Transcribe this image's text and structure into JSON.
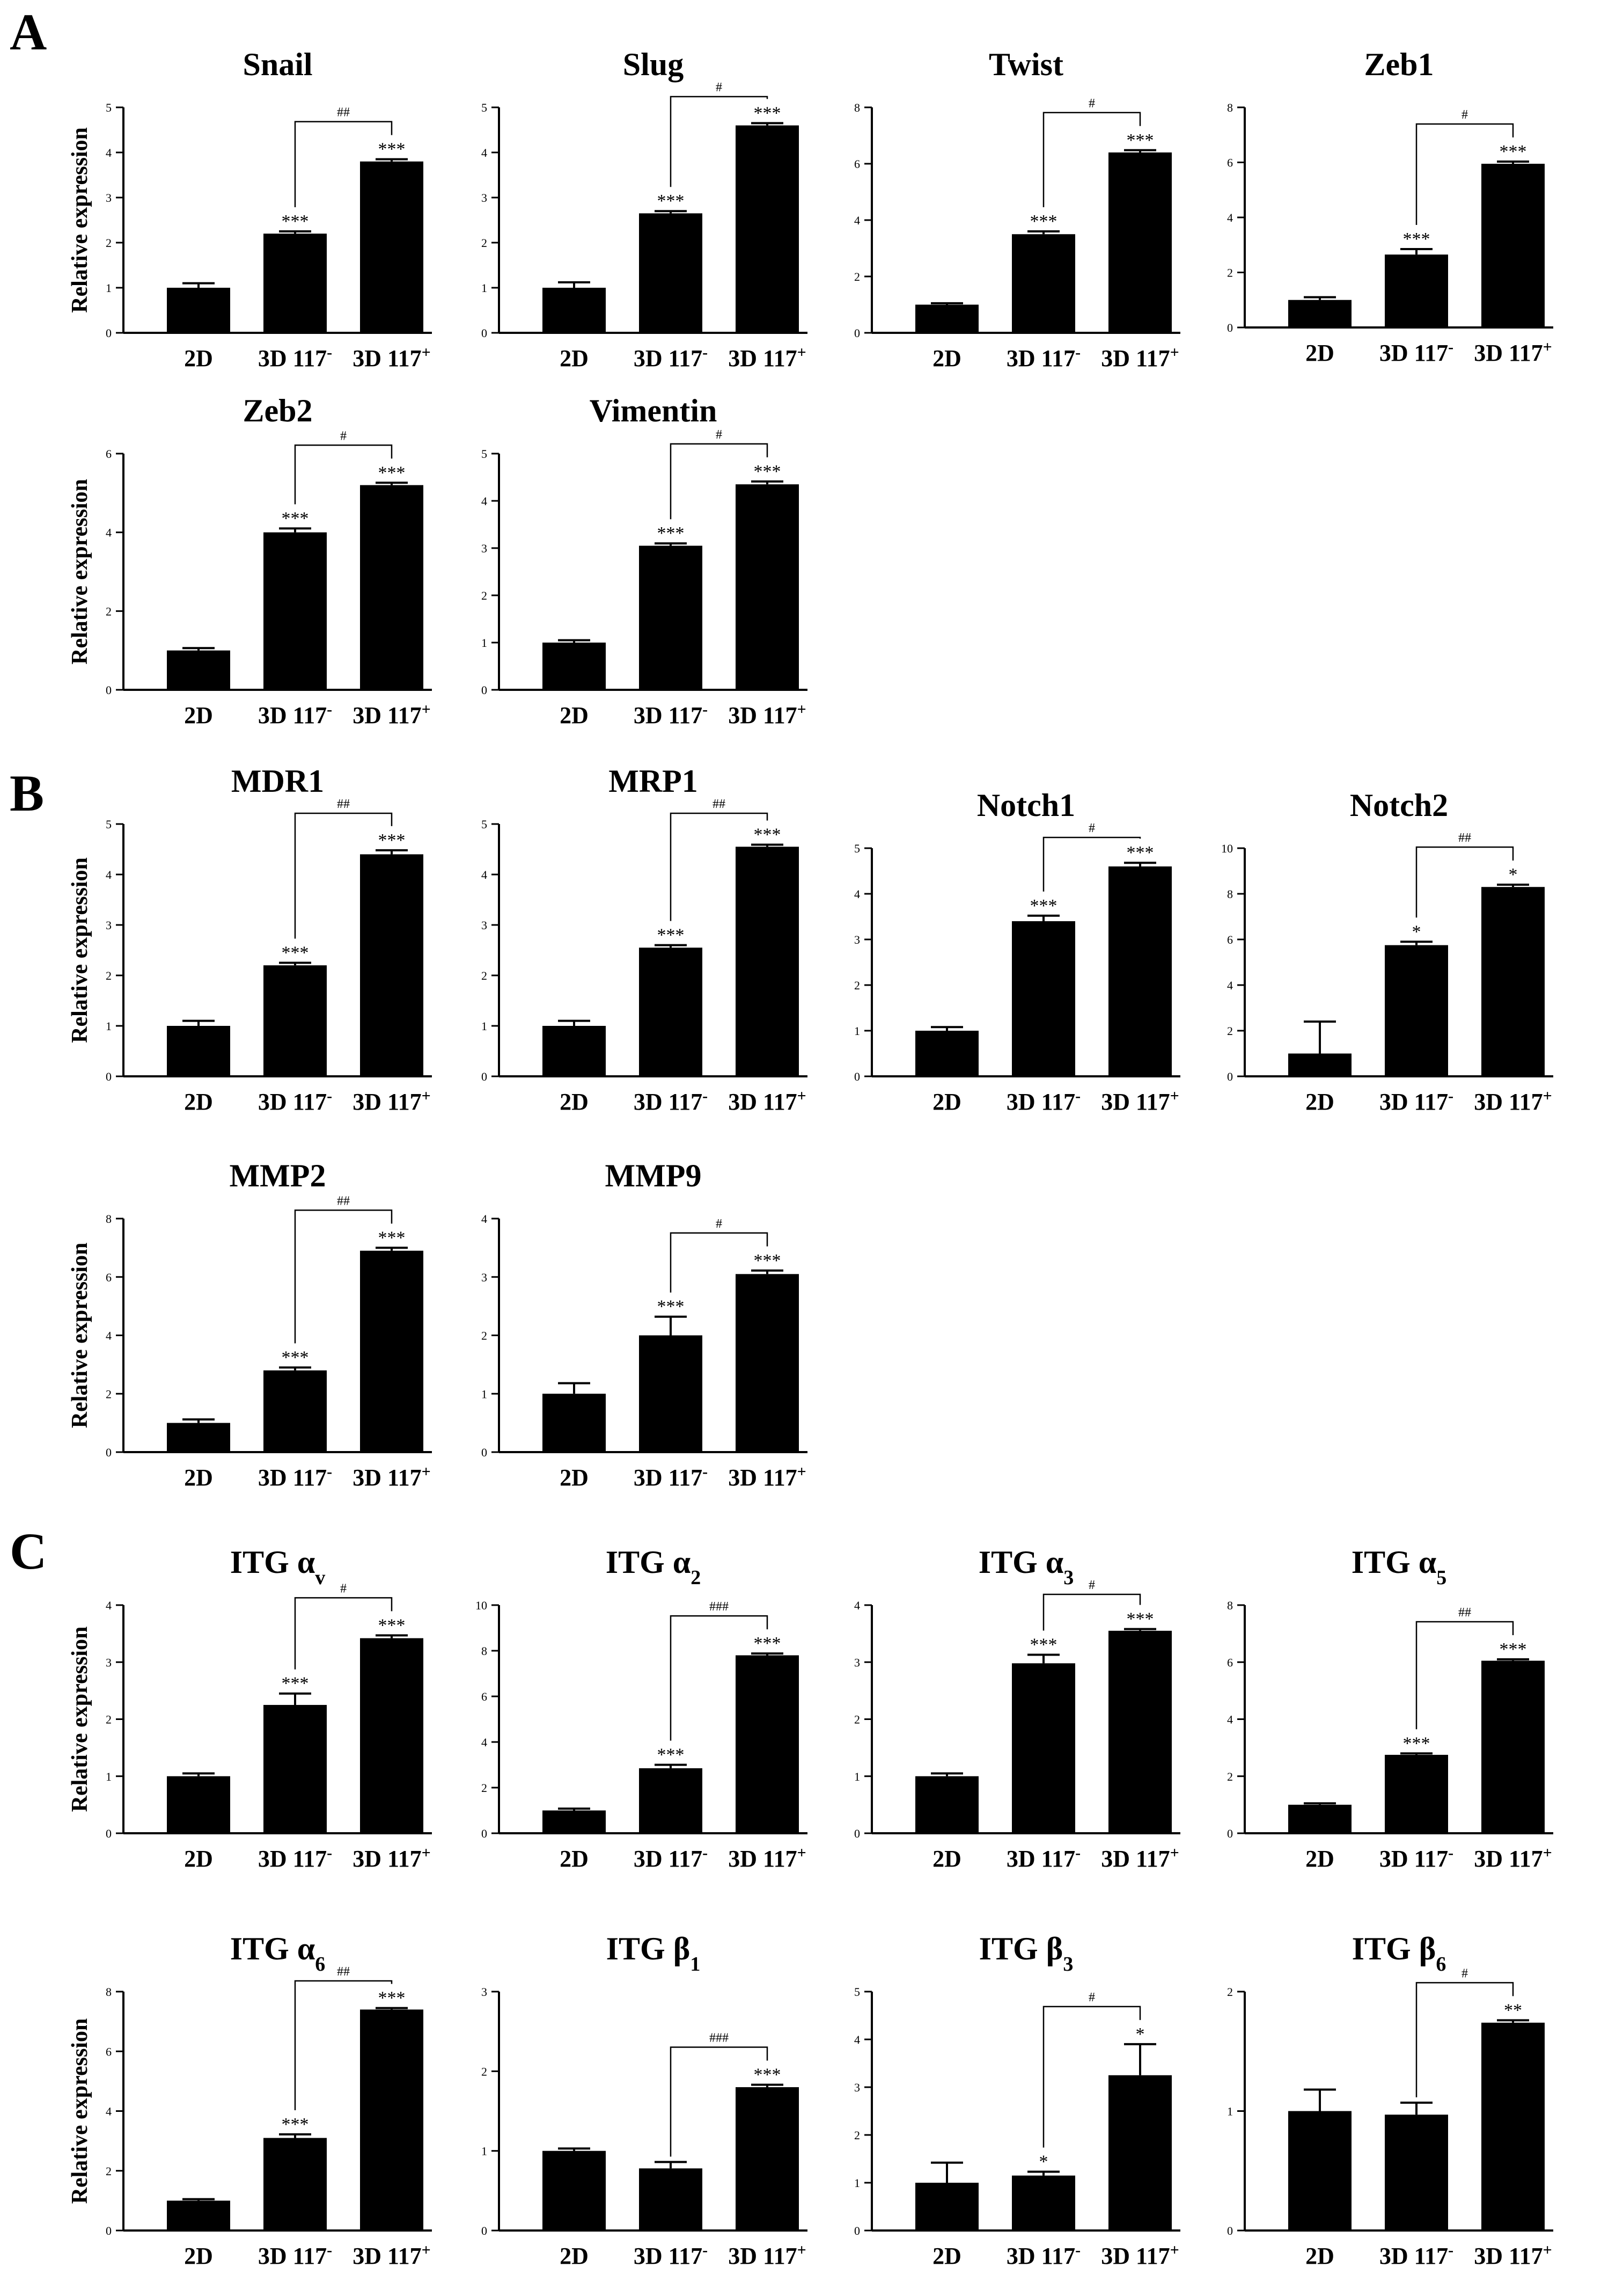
{
  "panels": [
    "A",
    "B",
    "C"
  ],
  "colors": {
    "bar": "#000000",
    "axis": "#000000",
    "background": "#ffffff"
  },
  "chart_data": [
    {
      "type": "bar",
      "panel": "A",
      "title": "Snail",
      "title_sub": "",
      "ylabel": "Relative expression",
      "categories": [
        "2D",
        "3D 117-",
        "3D 117+"
      ],
      "values": [
        1.0,
        2.2,
        3.8
      ],
      "errors": [
        0.1,
        0.05,
        0.05
      ],
      "ylim": [
        0,
        5
      ],
      "yticks": [
        0,
        1,
        2,
        3,
        4,
        5
      ],
      "sig": [
        "",
        "***",
        "***"
      ],
      "bracket": "##"
    },
    {
      "type": "bar",
      "panel": "A",
      "title": "Slug",
      "title_sub": "",
      "ylabel": "",
      "categories": [
        "2D",
        "3D 117-",
        "3D 117+"
      ],
      "values": [
        1.0,
        2.65,
        4.6
      ],
      "errors": [
        0.12,
        0.05,
        0.05
      ],
      "ylim": [
        0,
        5
      ],
      "yticks": [
        0,
        1,
        2,
        3,
        4,
        5
      ],
      "sig": [
        "",
        "***",
        "***"
      ],
      "bracket": "#"
    },
    {
      "type": "bar",
      "panel": "A",
      "title": "Twist",
      "title_sub": "",
      "ylabel": "",
      "categories": [
        "2D",
        "3D 117-",
        "3D 117+"
      ],
      "values": [
        1.0,
        3.5,
        6.4
      ],
      "errors": [
        0.05,
        0.1,
        0.08
      ],
      "ylim": [
        0,
        8
      ],
      "yticks": [
        0,
        2,
        4,
        6,
        8
      ],
      "sig": [
        "",
        "***",
        "***"
      ],
      "bracket": "#"
    },
    {
      "type": "bar",
      "panel": "A",
      "title": "Zeb1",
      "title_sub": "",
      "ylabel": "",
      "categories": [
        "2D",
        "3D 117-",
        "3D 117+"
      ],
      "values": [
        1.0,
        2.65,
        5.95
      ],
      "errors": [
        0.1,
        0.2,
        0.08
      ],
      "ylim": [
        0,
        8
      ],
      "yticks": [
        0,
        2,
        4,
        6,
        8
      ],
      "sig": [
        "",
        "***",
        "***"
      ],
      "bracket": "#"
    },
    {
      "type": "bar",
      "panel": "A",
      "title": "Zeb2",
      "title_sub": "",
      "ylabel": "Relative expression",
      "categories": [
        "2D",
        "3D 117-",
        "3D 117+"
      ],
      "values": [
        1.0,
        4.0,
        5.2
      ],
      "errors": [
        0.06,
        0.1,
        0.06
      ],
      "ylim": [
        0,
        6
      ],
      "yticks": [
        0,
        2,
        4,
        6
      ],
      "sig": [
        "",
        "***",
        "***"
      ],
      "bracket": "#"
    },
    {
      "type": "bar",
      "panel": "A",
      "title": "Vimentin",
      "title_sub": "",
      "ylabel": "",
      "categories": [
        "2D",
        "3D 117-",
        "3D 117+"
      ],
      "values": [
        1.0,
        3.05,
        4.35
      ],
      "errors": [
        0.05,
        0.05,
        0.06
      ],
      "ylim": [
        0,
        5
      ],
      "yticks": [
        0,
        1,
        2,
        3,
        4,
        5
      ],
      "sig": [
        "",
        "***",
        "***"
      ],
      "bracket": "#"
    },
    {
      "type": "bar",
      "panel": "B",
      "title": "MDR1",
      "title_sub": "",
      "ylabel": "Relative expression",
      "categories": [
        "2D",
        "3D 117-",
        "3D 117+"
      ],
      "values": [
        1.0,
        2.2,
        4.4
      ],
      "errors": [
        0.1,
        0.05,
        0.08
      ],
      "ylim": [
        0,
        5
      ],
      "yticks": [
        0,
        1,
        2,
        3,
        4,
        5
      ],
      "sig": [
        "",
        "***",
        "***"
      ],
      "bracket": "##"
    },
    {
      "type": "bar",
      "panel": "B",
      "title": "MRP1",
      "title_sub": "",
      "ylabel": "",
      "categories": [
        "2D",
        "3D 117-",
        "3D 117+"
      ],
      "values": [
        1.0,
        2.55,
        4.55
      ],
      "errors": [
        0.1,
        0.05,
        0.04
      ],
      "ylim": [
        0,
        5
      ],
      "yticks": [
        0,
        1,
        2,
        3,
        4,
        5
      ],
      "sig": [
        "",
        "***",
        "***"
      ],
      "bracket": "##"
    },
    {
      "type": "bar",
      "panel": "B",
      "title": "Notch1",
      "title_sub": "",
      "ylabel": "",
      "categories": [
        "2D",
        "3D 117-",
        "3D 117+"
      ],
      "values": [
        1.0,
        3.4,
        4.6
      ],
      "errors": [
        0.08,
        0.12,
        0.08
      ],
      "ylim": [
        0,
        5
      ],
      "yticks": [
        0,
        1,
        2,
        3,
        4,
        5
      ],
      "sig": [
        "",
        "***",
        "***"
      ],
      "bracket": "#"
    },
    {
      "type": "bar",
      "panel": "B",
      "title": "Notch2",
      "title_sub": "",
      "ylabel": "",
      "categories": [
        "2D",
        "3D 117-",
        "3D 117+"
      ],
      "values": [
        1.0,
        5.75,
        8.3
      ],
      "errors": [
        1.4,
        0.15,
        0.1
      ],
      "ylim": [
        0,
        10
      ],
      "yticks": [
        0,
        2,
        4,
        6,
        8,
        10
      ],
      "sig": [
        "",
        "*",
        "*"
      ],
      "bracket": "##"
    },
    {
      "type": "bar",
      "panel": "B",
      "title": "MMP2",
      "title_sub": "",
      "ylabel": "Relative expression",
      "categories": [
        "2D",
        "3D 117-",
        "3D 117+"
      ],
      "values": [
        1.0,
        2.8,
        6.9
      ],
      "errors": [
        0.12,
        0.1,
        0.1
      ],
      "ylim": [
        0,
        8
      ],
      "yticks": [
        0,
        2,
        4,
        6,
        8
      ],
      "sig": [
        "",
        "***",
        "***"
      ],
      "bracket": "##"
    },
    {
      "type": "bar",
      "panel": "B",
      "title": "MMP9",
      "title_sub": "",
      "ylabel": "",
      "categories": [
        "2D",
        "3D 117-",
        "3D 117+"
      ],
      "values": [
        1.0,
        2.0,
        3.05
      ],
      "errors": [
        0.18,
        0.32,
        0.06
      ],
      "ylim": [
        0,
        4
      ],
      "yticks": [
        0,
        1,
        2,
        3,
        4
      ],
      "sig": [
        "",
        "***",
        "***"
      ],
      "bracket": "#"
    },
    {
      "type": "bar",
      "panel": "C",
      "title": "ITG α",
      "title_sub": "v",
      "ylabel": "Relative expression",
      "categories": [
        "2D",
        "3D 117-",
        "3D 117+"
      ],
      "values": [
        1.0,
        2.25,
        3.42
      ],
      "errors": [
        0.05,
        0.2,
        0.05
      ],
      "ylim": [
        0,
        4
      ],
      "yticks": [
        0,
        1,
        2,
        3,
        4
      ],
      "sig": [
        "",
        "***",
        "***"
      ],
      "bracket": "#"
    },
    {
      "type": "bar",
      "panel": "C",
      "title": "ITG α",
      "title_sub": "2",
      "ylabel": "",
      "categories": [
        "2D",
        "3D 117-",
        "3D 117+"
      ],
      "values": [
        1.0,
        2.85,
        7.8
      ],
      "errors": [
        0.08,
        0.15,
        0.08
      ],
      "ylim": [
        0,
        10
      ],
      "yticks": [
        0,
        2,
        4,
        6,
        8,
        10
      ],
      "sig": [
        "",
        "***",
        "***"
      ],
      "bracket": "###"
    },
    {
      "type": "bar",
      "panel": "C",
      "title": "ITG α",
      "title_sub": "3",
      "ylabel": "",
      "categories": [
        "2D",
        "3D 117-",
        "3D 117+"
      ],
      "values": [
        1.0,
        2.98,
        3.55
      ],
      "errors": [
        0.05,
        0.15,
        0.03
      ],
      "ylim": [
        0,
        4
      ],
      "yticks": [
        0,
        1,
        2,
        3,
        4
      ],
      "sig": [
        "",
        "***",
        "***"
      ],
      "bracket": "#"
    },
    {
      "type": "bar",
      "panel": "C",
      "title": "ITG α",
      "title_sub": "5",
      "ylabel": "",
      "categories": [
        "2D",
        "3D 117-",
        "3D 117+"
      ],
      "values": [
        1.0,
        2.75,
        6.05
      ],
      "errors": [
        0.05,
        0.05,
        0.05
      ],
      "ylim": [
        0,
        8
      ],
      "yticks": [
        0,
        2,
        4,
        6,
        8
      ],
      "sig": [
        "",
        "***",
        "***"
      ],
      "bracket": "##"
    },
    {
      "type": "bar",
      "panel": "C",
      "title": "ITG α",
      "title_sub": "6",
      "ylabel": "Relative expression",
      "categories": [
        "2D",
        "3D 117-",
        "3D 117+"
      ],
      "values": [
        1.0,
        3.1,
        7.4
      ],
      "errors": [
        0.05,
        0.12,
        0.05
      ],
      "ylim": [
        0,
        8
      ],
      "yticks": [
        0,
        2,
        4,
        6,
        8
      ],
      "sig": [
        "",
        "***",
        "***"
      ],
      "bracket": "##"
    },
    {
      "type": "bar",
      "panel": "C",
      "title": "ITG β",
      "title_sub": "1",
      "ylabel": "",
      "categories": [
        "2D",
        "3D 117-",
        "3D 117+"
      ],
      "values": [
        1.0,
        0.78,
        1.8
      ],
      "errors": [
        0.03,
        0.08,
        0.03
      ],
      "ylim": [
        0,
        3
      ],
      "yticks": [
        0,
        1,
        2,
        3
      ],
      "sig": [
        "",
        "",
        "***"
      ],
      "bracket": "###"
    },
    {
      "type": "bar",
      "panel": "C",
      "title": "ITG β",
      "title_sub": "3",
      "ylabel": "",
      "categories": [
        "2D",
        "3D 117-",
        "3D 117+"
      ],
      "values": [
        1.0,
        1.15,
        3.25
      ],
      "errors": [
        0.42,
        0.08,
        0.65
      ],
      "ylim": [
        0,
        5
      ],
      "yticks": [
        0,
        1,
        2,
        3,
        4,
        5
      ],
      "sig": [
        "",
        "*",
        "*"
      ],
      "bracket": "#"
    },
    {
      "type": "bar",
      "panel": "C",
      "title": "ITG β",
      "title_sub": "6",
      "ylabel": "",
      "categories": [
        "2D",
        "3D 117-",
        "3D 117+"
      ],
      "values": [
        1.0,
        0.97,
        1.74
      ],
      "errors": [
        0.18,
        0.1,
        0.02
      ],
      "ylim": [
        0,
        2
      ],
      "yticks": [
        0,
        1,
        2
      ],
      "sig": [
        "",
        "",
        "**"
      ],
      "bracket": "#"
    }
  ]
}
